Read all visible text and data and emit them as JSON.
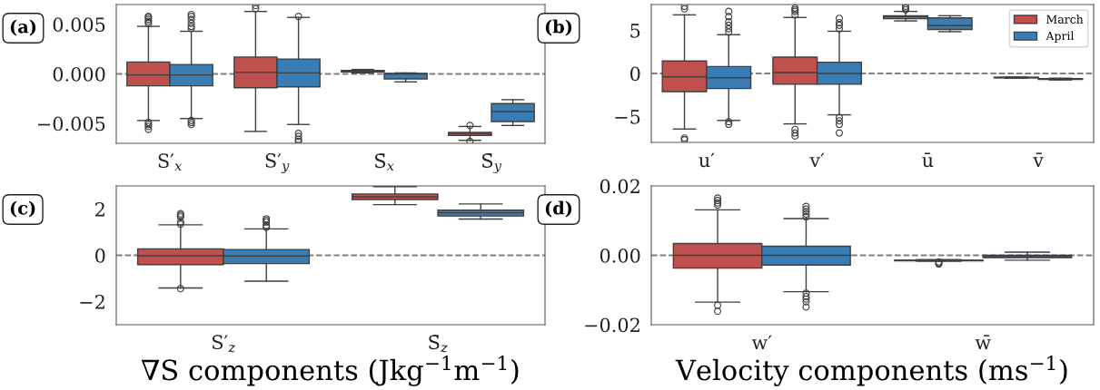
{
  "chart_data": [
    {
      "type": "box",
      "categories": [
        "S′$_{x}$",
        "S′$_{y}$",
        "S̄$_{x}$",
        "S̄$_{y}$"
      ],
      "annotations": [
        "(a)"
      ],
      "ylim": [
        -0.007,
        0.007
      ],
      "yticks": [
        {
          "value": -0.005,
          "label": "−0.005"
        },
        {
          "value": 0,
          "label": "0.000"
        },
        {
          "value": 0.005,
          "label": "0.005"
        }
      ],
      "ref_lines": [
        {
          "axis": "y",
          "value": 0,
          "color": "#7f7f7f",
          "line_style": "dashed"
        }
      ],
      "legend": false,
      "series": [
        {
          "color": "#c0504d",
          "boxes": [
            {
              "low": -0.0047,
              "q1": -0.0012,
              "median": -0.0001,
              "q3": 0.0012,
              "high": 0.0048,
              "outliers": [
                0.0058,
                0.0057,
                0.0055,
                0.0053,
                0.0051,
                -0.0049,
                -0.0051,
                -0.0053,
                -0.0056
              ]
            },
            {
              "low": -0.0058,
              "q1": -0.0014,
              "median": 0.00015,
              "q3": 0.0017,
              "high": 0.0063,
              "outliers": [
                0.0069,
                0.0066
              ]
            },
            {
              "low": 0.0001,
              "q1": 0.0002,
              "median": 0.0003,
              "q3": 0.00035,
              "high": 0.00045
            },
            {
              "low": -0.0067,
              "q1": -0.0062,
              "median": -0.006,
              "q3": -0.0059,
              "high": -0.0053,
              "outliers": [
                -0.0052,
                -0.0068
              ]
            }
          ]
        },
        {
          "color": "#3a7db5",
          "boxes": [
            {
              "low": -0.0045,
              "q1": -0.0012,
              "median": -0.0001,
              "q3": 0.00095,
              "high": 0.0043,
              "outliers": [
                0.006,
                0.0058,
                0.0055,
                0.0051,
                0.0048,
                0.0046,
                -0.0047,
                -0.0049,
                -0.0051
              ]
            },
            {
              "low": -0.0051,
              "q1": -0.0013,
              "median": 0.0001,
              "q3": 0.0015,
              "high": 0.0057,
              "outliers": [
                0.0058,
                -0.006,
                -0.0063,
                -0.0066,
                -0.0068
              ]
            },
            {
              "low": -0.0008,
              "q1": -0.0005,
              "median": 0.0,
              "q3": 5e-05,
              "high": 0.0001
            },
            {
              "low": -0.0052,
              "q1": -0.0048,
              "median": -0.0038,
              "q3": -0.003,
              "high": -0.0026
            }
          ]
        }
      ]
    },
    {
      "type": "box",
      "categories": [
        "u′",
        "v′",
        "ū",
        "v̄"
      ],
      "annotations": [
        "(b)"
      ],
      "ylim": [
        -8,
        8
      ],
      "yticks": [
        {
          "value": -5,
          "label": "−5"
        },
        {
          "value": 0,
          "label": "0"
        },
        {
          "value": 5,
          "label": "5"
        }
      ],
      "ref_lines": [
        {
          "axis": "y",
          "value": 0,
          "color": "#7f7f7f",
          "line_style": "dashed"
        }
      ],
      "legend": "top right",
      "series": [
        {
          "name": "March",
          "color": "#c0504d",
          "boxes": [
            {
              "low": -6.45,
              "q1": -2.1,
              "median": -0.4,
              "q3": 1.45,
              "high": 6.8,
              "outliers": [
                7.8,
                7.5,
                -7.5,
                -7.7
              ]
            },
            {
              "low": -5.85,
              "q1": -1.25,
              "median": 0.1,
              "q3": 1.9,
              "high": 6.5,
              "outliers": [
                7.6,
                7.4,
                7.2,
                6.8,
                -6.5,
                -6.9,
                -7.25
              ]
            },
            {
              "low": 6.1,
              "q1": 6.35,
              "median": 6.6,
              "q3": 6.7,
              "high": 7.2,
              "outliers": [
                7.8,
                7.6,
                7.4
              ]
            },
            {
              "low": -0.55,
              "q1": -0.5,
              "median": -0.48,
              "q3": -0.45,
              "high": -0.42
            }
          ]
        },
        {
          "name": "April",
          "color": "#3a7db5",
          "boxes": [
            {
              "low": -5.45,
              "q1": -1.75,
              "median": -0.5,
              "q3": 0.8,
              "high": 4.5,
              "outliers": [
                7.2,
                6.6,
                6.0,
                5.6,
                5.2,
                4.8,
                -5.6,
                -5.9
              ]
            },
            {
              "low": -4.8,
              "q1": -1.25,
              "median": 0.0,
              "q3": 1.3,
              "high": 4.9,
              "outliers": [
                6.4,
                5.9,
                5.6,
                5.2,
                -5.1,
                -5.5,
                -5.9,
                -6.9
              ]
            },
            {
              "low": 4.85,
              "q1": 5.1,
              "median": 5.55,
              "q3": 6.45,
              "high": 6.7
            },
            {
              "low": -0.75,
              "q1": -0.7,
              "median": -0.65,
              "q3": -0.6,
              "high": -0.55
            }
          ]
        }
      ]
    },
    {
      "type": "box",
      "categories": [
        "S′$_{z}$",
        "S̄$_{z}$"
      ],
      "annotations": [
        "(c)"
      ],
      "xlabel": "∇S components (Jkg$^{−1}$m$^{−1}$)",
      "ylim": [
        -3,
        3
      ],
      "yticks": [
        {
          "value": -2,
          "label": "−2"
        },
        {
          "value": 0,
          "label": "0"
        },
        {
          "value": 2,
          "label": "2"
        }
      ],
      "ref_lines": [
        {
          "axis": "y",
          "value": 0,
          "color": "#7f7f7f",
          "line_style": "dashed"
        }
      ],
      "legend": false,
      "series": [
        {
          "color": "#c0504d",
          "boxes": [
            {
              "low": -1.41,
              "q1": -0.4,
              "median": -0.02,
              "q3": 0.28,
              "high": 1.32,
              "outliers": [
                1.8,
                1.73,
                1.66,
                1.44,
                1.35,
                -1.44
              ]
            },
            {
              "low": 2.19,
              "q1": 2.41,
              "median": 2.53,
              "q3": 2.65,
              "high": 2.97
            }
          ]
        },
        {
          "color": "#3a7db5",
          "boxes": [
            {
              "low": -1.12,
              "q1": -0.36,
              "median": -0.03,
              "q3": 0.25,
              "high": 1.14,
              "outliers": [
                1.58,
                1.51,
                1.44,
                1.29,
                1.21
              ]
            },
            {
              "low": 1.57,
              "q1": 1.7,
              "median": 1.84,
              "q3": 1.95,
              "high": 2.22
            }
          ]
        }
      ]
    },
    {
      "type": "box",
      "categories": [
        "w′",
        "w̄"
      ],
      "annotations": [
        "(d)"
      ],
      "xlabel": "Velocity components (ms$^{−1}$)",
      "ylim": [
        -0.02,
        0.02
      ],
      "yticks": [
        {
          "value": -0.02,
          "label": "−0.02"
        },
        {
          "value": 0,
          "label": "0.00"
        },
        {
          "value": 0.02,
          "label": "0.02"
        }
      ],
      "ref_lines": [
        {
          "axis": "y",
          "value": 0,
          "color": "#7f7f7f",
          "line_style": "dashed"
        }
      ],
      "legend": false,
      "series": [
        {
          "color": "#c0504d",
          "boxes": [
            {
              "low": -0.0135,
              "q1": -0.0037,
              "median": 0.0,
              "q3": 0.0034,
              "high": 0.0131,
              "outliers": [
                0.0165,
                0.0158,
                0.0151,
                0.0145,
                -0.0144,
                -0.0161
              ]
            },
            {
              "low": -0.0017,
              "q1": -0.0016,
              "median": -0.0015,
              "q3": -0.0014,
              "high": -0.0012,
              "outliers": [
                -0.0019,
                -0.0022,
                -0.0025
              ]
            }
          ]
        },
        {
          "color": "#3a7db5",
          "boxes": [
            {
              "low": -0.0105,
              "q1": -0.0028,
              "median": 0.0,
              "q3": 0.0026,
              "high": 0.0106,
              "outliers": [
                0.0141,
                0.0133,
                0.0126,
                0.0119,
                0.0111,
                -0.0109,
                -0.0119,
                -0.0126,
                -0.0134,
                -0.0149
              ]
            },
            {
              "low": -0.0014,
              "q1": -0.0007,
              "median": -0.0004,
              "q3": 0.0,
              "high": 0.0009
            }
          ]
        }
      ]
    }
  ]
}
